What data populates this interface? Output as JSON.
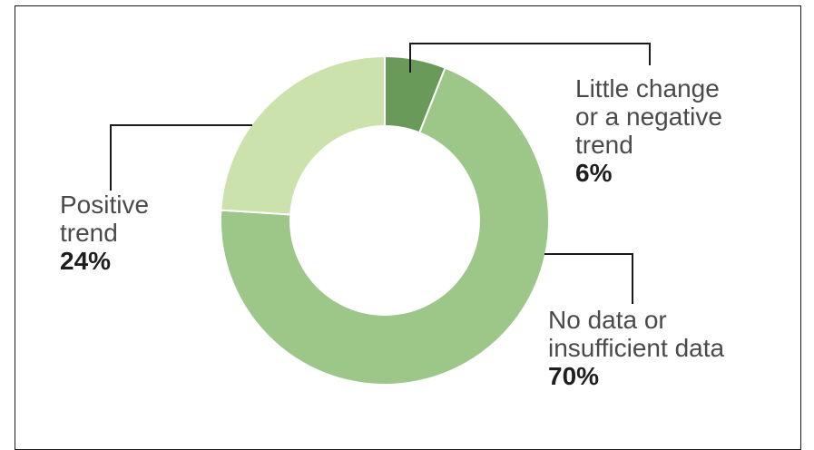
{
  "chart_data": {
    "type": "pie",
    "donut": true,
    "categories": [
      "Little change or a negative trend",
      "No data or insufficient data",
      "Positive trend"
    ],
    "values": [
      6,
      70,
      24
    ],
    "colors": [
      "#6a9a5a",
      "#9cc789",
      "#cbe2ad"
    ],
    "legend": "callout labels",
    "labels": [
      {
        "lines": [
          "Little change",
          "or a negative",
          "trend"
        ],
        "pct": "6%"
      },
      {
        "lines": [
          "No data or",
          "insufficient data"
        ],
        "pct": "70%"
      },
      {
        "lines": [
          "Positive",
          "trend"
        ],
        "pct": "24%"
      }
    ]
  }
}
